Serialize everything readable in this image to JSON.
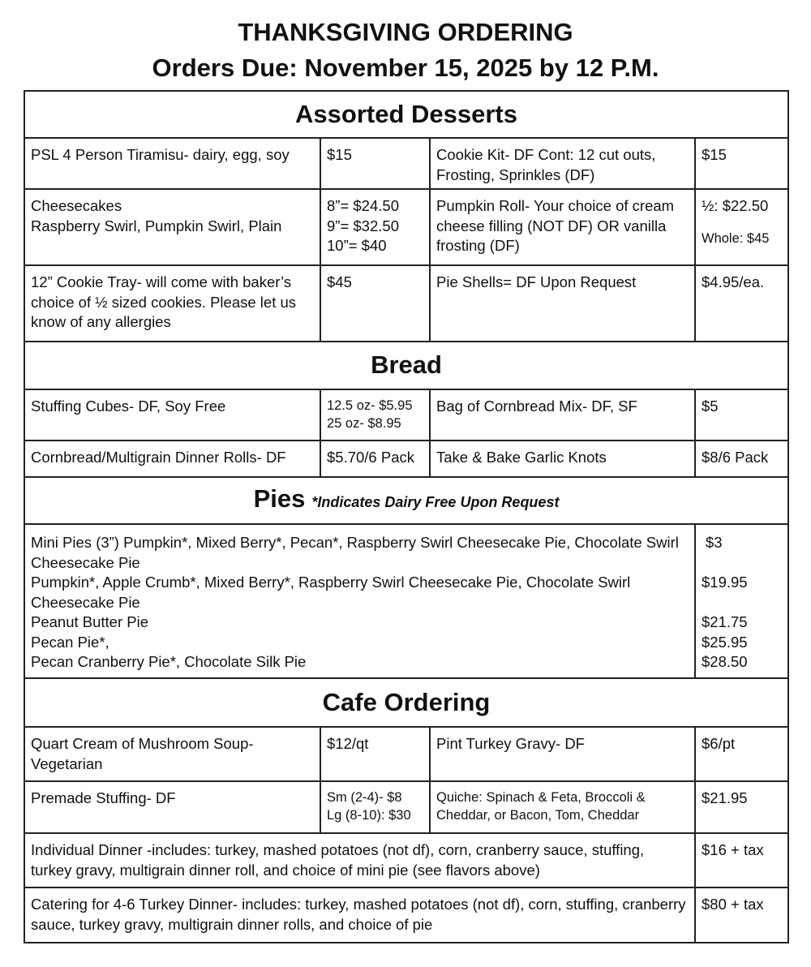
{
  "header": {
    "title": "THANKSGIVING ORDERING",
    "due": "Orders Due: November 15, 2025 by 12 P.M."
  },
  "desserts": {
    "heading": "Assorted Desserts",
    "rows": [
      {
        "item1": "PSL 4 Person Tiramisu- dairy, egg, soy",
        "price1": "$15",
        "item2": "Cookie Kit- DF Cont: 12 cut outs, Frosting, Sprinkles (DF)",
        "price2": "$15"
      },
      {
        "item1a": "Cheesecakes",
        "item1b": "Raspberry Swirl, Pumpkin Swirl, Plain",
        "price1a": "8”= $24.50",
        "price1b": "9”= $32.50",
        "price1c": "10”= $40",
        "item2": "Pumpkin Roll- Your choice of cream cheese filling (NOT DF) OR vanilla frosting (DF)",
        "price2a": "½: $22.50",
        "price2b": "Whole: $45"
      },
      {
        "item1": "12” Cookie Tray- will come with baker’s choice of ½ sized cookies. Please let us know of any allergies",
        "price1": "$45",
        "item2": "Pie Shells= DF Upon Request",
        "price2": "$4.95/ea."
      }
    ]
  },
  "bread": {
    "heading": "Bread",
    "rows": [
      {
        "item1": "Stuffing Cubes- DF, Soy Free",
        "price1a": "12.5 oz- $5.95",
        "price1b": "25 oz- $8.95",
        "item2": "Bag of Cornbread Mix- DF, SF",
        "price2": "$5"
      },
      {
        "item1": "Cornbread/Multigrain Dinner Rolls- DF",
        "price1": "$5.70/6 Pack",
        "item2": "Take & Bake Garlic Knots",
        "price2": "$8/6 Pack"
      }
    ]
  },
  "pies": {
    "heading": "Pies",
    "note": "*Indicates Dairy Free Upon Request",
    "items": [
      {
        "name": "Mini Pies (3”) Pumpkin*, Mixed Berry*, Pecan*, Raspberry Swirl Cheesecake Pie, Chocolate Swirl Cheesecake Pie",
        "price": "$3"
      },
      {
        "name": "Pumpkin*, Apple Crumb*, Mixed Berry*, Raspberry Swirl Cheesecake Pie, Chocolate Swirl Cheesecake Pie",
        "price": "$19.95"
      },
      {
        "name": "Peanut Butter Pie",
        "price": "$21.75"
      },
      {
        "name": "Pecan Pie*,",
        "price": "$25.95"
      },
      {
        "name": "Pecan Cranberry Pie*, Chocolate Silk Pie",
        "price": "$28.50"
      }
    ]
  },
  "cafe": {
    "heading": "Cafe Ordering",
    "rows": [
      {
        "item1": "Quart Cream of Mushroom Soup- Vegetarian",
        "price1": "$12/qt",
        "item2": "Pint Turkey Gravy- DF",
        "price2": "$6/pt"
      },
      {
        "item1": "Premade Stuffing- DF",
        "price1a": "Sm (2-4)- $8",
        "price1b": "Lg (8-10): $30",
        "item2": "Quiche: Spinach & Feta, Broccoli & Cheddar,  or Bacon, Tom, Cheddar",
        "price2": "$21.95"
      }
    ],
    "dinners": [
      {
        "name": "Individual Dinner -includes: turkey, mashed potatoes (not df), corn, cranberry sauce, stuffing, turkey gravy, multigrain dinner roll, and choice of mini pie (see flavors above)",
        "price": "$16 + tax"
      },
      {
        "name": "Catering for 4-6 Turkey Dinner- includes: turkey, mashed potatoes (not df), corn, stuffing, cranberry sauce, turkey gravy, multigrain dinner rolls, and choice of pie",
        "price": "$80 + tax"
      }
    ]
  }
}
